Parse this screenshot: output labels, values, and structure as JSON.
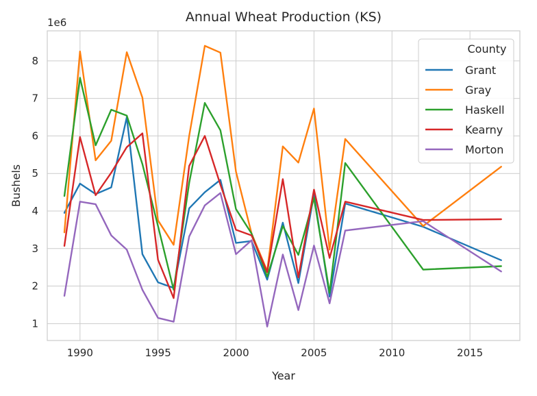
{
  "chart_data": {
    "type": "line",
    "title": "Annual Wheat Production (KS)",
    "xlabel": "Year",
    "ylabel": "Bushels",
    "y_multiplier_label": "1e6",
    "xlim": [
      1987.9,
      2018.2
    ],
    "ylim": [
      0.55,
      8.8
    ],
    "x_ticks": [
      1990,
      1995,
      2000,
      2005,
      2010,
      2015
    ],
    "y_ticks": [
      1,
      2,
      3,
      4,
      5,
      6,
      7,
      8
    ],
    "grid": true,
    "legend": {
      "title": "County",
      "position": "top-right"
    },
    "series": [
      {
        "name": "Grant",
        "color": "#1f77b4",
        "x": [
          1989,
          1990,
          1991,
          1992,
          1993,
          1994,
          1995,
          1996,
          1997,
          1998,
          1999,
          2000,
          2001,
          2002,
          2003,
          2004,
          2005,
          2006,
          2007,
          2012,
          2017
        ],
        "y": [
          3.95,
          4.73,
          4.45,
          4.63,
          6.5,
          2.85,
          2.1,
          1.95,
          4.07,
          4.5,
          4.83,
          3.15,
          3.2,
          2.17,
          3.69,
          2.08,
          4.45,
          1.72,
          4.2,
          3.58,
          2.69
        ]
      },
      {
        "name": "Gray",
        "color": "#ff7f0e",
        "x": [
          1989,
          1990,
          1991,
          1992,
          1993,
          1994,
          1995,
          1996,
          1997,
          1998,
          1999,
          2000,
          2001,
          2002,
          2003,
          2004,
          2005,
          2006,
          2007,
          2012,
          2017
        ],
        "y": [
          3.43,
          8.25,
          5.35,
          5.87,
          8.23,
          7.02,
          3.75,
          3.1,
          6.0,
          8.4,
          8.22,
          5.05,
          3.4,
          2.4,
          5.72,
          5.29,
          6.73,
          2.97,
          5.92,
          3.6,
          5.18
        ]
      },
      {
        "name": "Haskell",
        "color": "#2ca02c",
        "x": [
          1989,
          1990,
          1991,
          1992,
          1993,
          1994,
          1995,
          1996,
          1997,
          1998,
          1999,
          2000,
          2001,
          2002,
          2003,
          2004,
          2005,
          2006,
          2007,
          2012,
          2017
        ],
        "y": [
          4.4,
          7.55,
          5.75,
          6.7,
          6.54,
          5.25,
          3.6,
          1.9,
          4.75,
          6.88,
          6.15,
          4.05,
          3.4,
          2.25,
          3.6,
          2.83,
          4.35,
          1.82,
          5.28,
          2.44,
          2.53
        ]
      },
      {
        "name": "Kearny",
        "color": "#d62728",
        "x": [
          1989,
          1990,
          1991,
          1992,
          1993,
          1994,
          1995,
          1996,
          1997,
          1998,
          1999,
          2000,
          2001,
          2002,
          2003,
          2004,
          2005,
          2006,
          2007,
          2012,
          2017
        ],
        "y": [
          3.07,
          5.97,
          4.42,
          5.02,
          5.7,
          6.07,
          2.7,
          1.68,
          5.2,
          6.0,
          4.7,
          3.5,
          3.35,
          2.37,
          4.85,
          2.23,
          4.57,
          2.75,
          4.25,
          3.76,
          3.78
        ]
      },
      {
        "name": "Morton",
        "color": "#9467bd",
        "x": [
          1989,
          1990,
          1991,
          1992,
          1993,
          1994,
          1995,
          1996,
          1997,
          1998,
          1999,
          2000,
          2001,
          2002,
          2003,
          2004,
          2005,
          2006,
          2007,
          2012,
          2017
        ],
        "y": [
          1.74,
          4.25,
          4.18,
          3.35,
          2.97,
          1.9,
          1.15,
          1.05,
          3.32,
          4.15,
          4.48,
          2.85,
          3.22,
          0.92,
          2.84,
          1.36,
          3.08,
          1.54,
          3.48,
          3.73,
          2.39
        ]
      }
    ]
  }
}
